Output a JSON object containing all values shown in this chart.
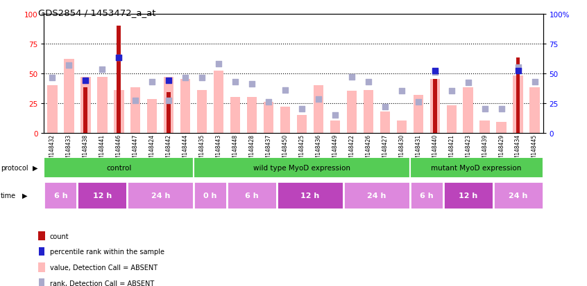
{
  "title": "GDS2854 / 1453472_a_at",
  "samples": [
    "GSM148432",
    "GSM148433",
    "GSM148438",
    "GSM148441",
    "GSM148446",
    "GSM148447",
    "GSM148424",
    "GSM148442",
    "GSM148444",
    "GSM148435",
    "GSM148443",
    "GSM148448",
    "GSM148428",
    "GSM148437",
    "GSM148450",
    "GSM148425",
    "GSM148436",
    "GSM148449",
    "GSM148422",
    "GSM148426",
    "GSM148427",
    "GSM148430",
    "GSM148431",
    "GSM148440",
    "GSM148421",
    "GSM148423",
    "GSM148439",
    "GSM148429",
    "GSM148434",
    "GSM148445"
  ],
  "count_values": [
    0,
    0,
    38,
    0,
    90,
    0,
    0,
    34,
    0,
    0,
    0,
    0,
    0,
    0,
    0,
    0,
    0,
    0,
    0,
    0,
    0,
    0,
    0,
    45,
    0,
    0,
    0,
    0,
    63,
    0
  ],
  "value_bars": [
    40,
    62,
    47,
    47,
    36,
    38,
    28,
    47,
    45,
    36,
    52,
    30,
    30,
    26,
    22,
    15,
    40,
    10,
    35,
    36,
    18,
    10,
    32,
    45,
    23,
    38,
    10,
    9,
    48,
    38
  ],
  "rank_dots": [
    46,
    57,
    44,
    53,
    63,
    27,
    43,
    27,
    46,
    46,
    58,
    43,
    41,
    26,
    36,
    20,
    28,
    15,
    47,
    43,
    22,
    35,
    26,
    51,
    35,
    42,
    20,
    20,
    55,
    43
  ],
  "percentile_dots": [
    0,
    0,
    44,
    0,
    63,
    0,
    0,
    44,
    0,
    0,
    0,
    0,
    0,
    0,
    0,
    0,
    0,
    0,
    0,
    0,
    0,
    0,
    0,
    52,
    0,
    0,
    0,
    0,
    52,
    0
  ],
  "bar_color_dark": "#bb1111",
  "bar_color_light": "#ffbbbb",
  "dot_color_dark": "#2222cc",
  "dot_color_light": "#aaaacc",
  "yticks": [
    0,
    25,
    50,
    75,
    100
  ],
  "protocol_labels": [
    "control",
    "wild type MyoD expression",
    "mutant MyoD expression"
  ],
  "protocol_ranges": [
    [
      0,
      9
    ],
    [
      9,
      22
    ],
    [
      22,
      30
    ]
  ],
  "protocol_color_light": "#aaddaa",
  "protocol_color_dark": "#55cc55",
  "time_defs": [
    [
      0,
      2,
      "6 h"
    ],
    [
      2,
      5,
      "12 h"
    ],
    [
      5,
      9,
      "24 h"
    ],
    [
      9,
      11,
      "0 h"
    ],
    [
      11,
      14,
      "6 h"
    ],
    [
      14,
      18,
      "12 h"
    ],
    [
      18,
      22,
      "24 h"
    ],
    [
      22,
      24,
      "6 h"
    ],
    [
      24,
      27,
      "12 h"
    ],
    [
      27,
      30,
      "24 h"
    ]
  ],
  "time_color_light": "#dd88dd",
  "time_color_dark": "#bb44bb"
}
